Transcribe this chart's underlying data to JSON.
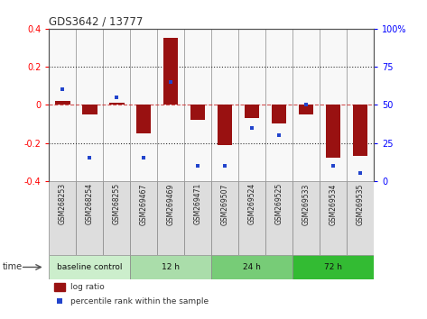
{
  "title": "GDS3642 / 13777",
  "samples": [
    "GSM268253",
    "GSM268254",
    "GSM268255",
    "GSM269467",
    "GSM269469",
    "GSM269471",
    "GSM269507",
    "GSM269524",
    "GSM269525",
    "GSM269533",
    "GSM269534",
    "GSM269535"
  ],
  "log_ratio": [
    0.02,
    -0.05,
    0.01,
    -0.15,
    0.35,
    -0.08,
    -0.21,
    -0.07,
    -0.1,
    -0.05,
    -0.28,
    -0.27
  ],
  "percentile_rank": [
    60,
    15,
    55,
    15,
    65,
    10,
    10,
    35,
    30,
    50,
    10,
    5
  ],
  "groups": [
    {
      "label": "baseline control",
      "start": 0,
      "end": 3,
      "color": "#cceecc"
    },
    {
      "label": "12 h",
      "start": 3,
      "end": 6,
      "color": "#aaddaa"
    },
    {
      "label": "24 h",
      "start": 6,
      "end": 9,
      "color": "#77cc77"
    },
    {
      "label": "72 h",
      "start": 9,
      "end": 12,
      "color": "#33bb33"
    }
  ],
  "bar_color": "#991111",
  "dot_color": "#2244cc",
  "ylim": [
    -0.4,
    0.4
  ],
  "y2lim": [
    0,
    100
  ],
  "yticks": [
    -0.4,
    -0.2,
    0.0,
    0.2,
    0.4
  ],
  "y2ticks": [
    0,
    25,
    50,
    75,
    100
  ],
  "hline_color": "#cc3333",
  "dotted_color": "#333333",
  "background_main": "#ffffff",
  "sample_box_color": "#dddddd",
  "spine_color": "#888888"
}
